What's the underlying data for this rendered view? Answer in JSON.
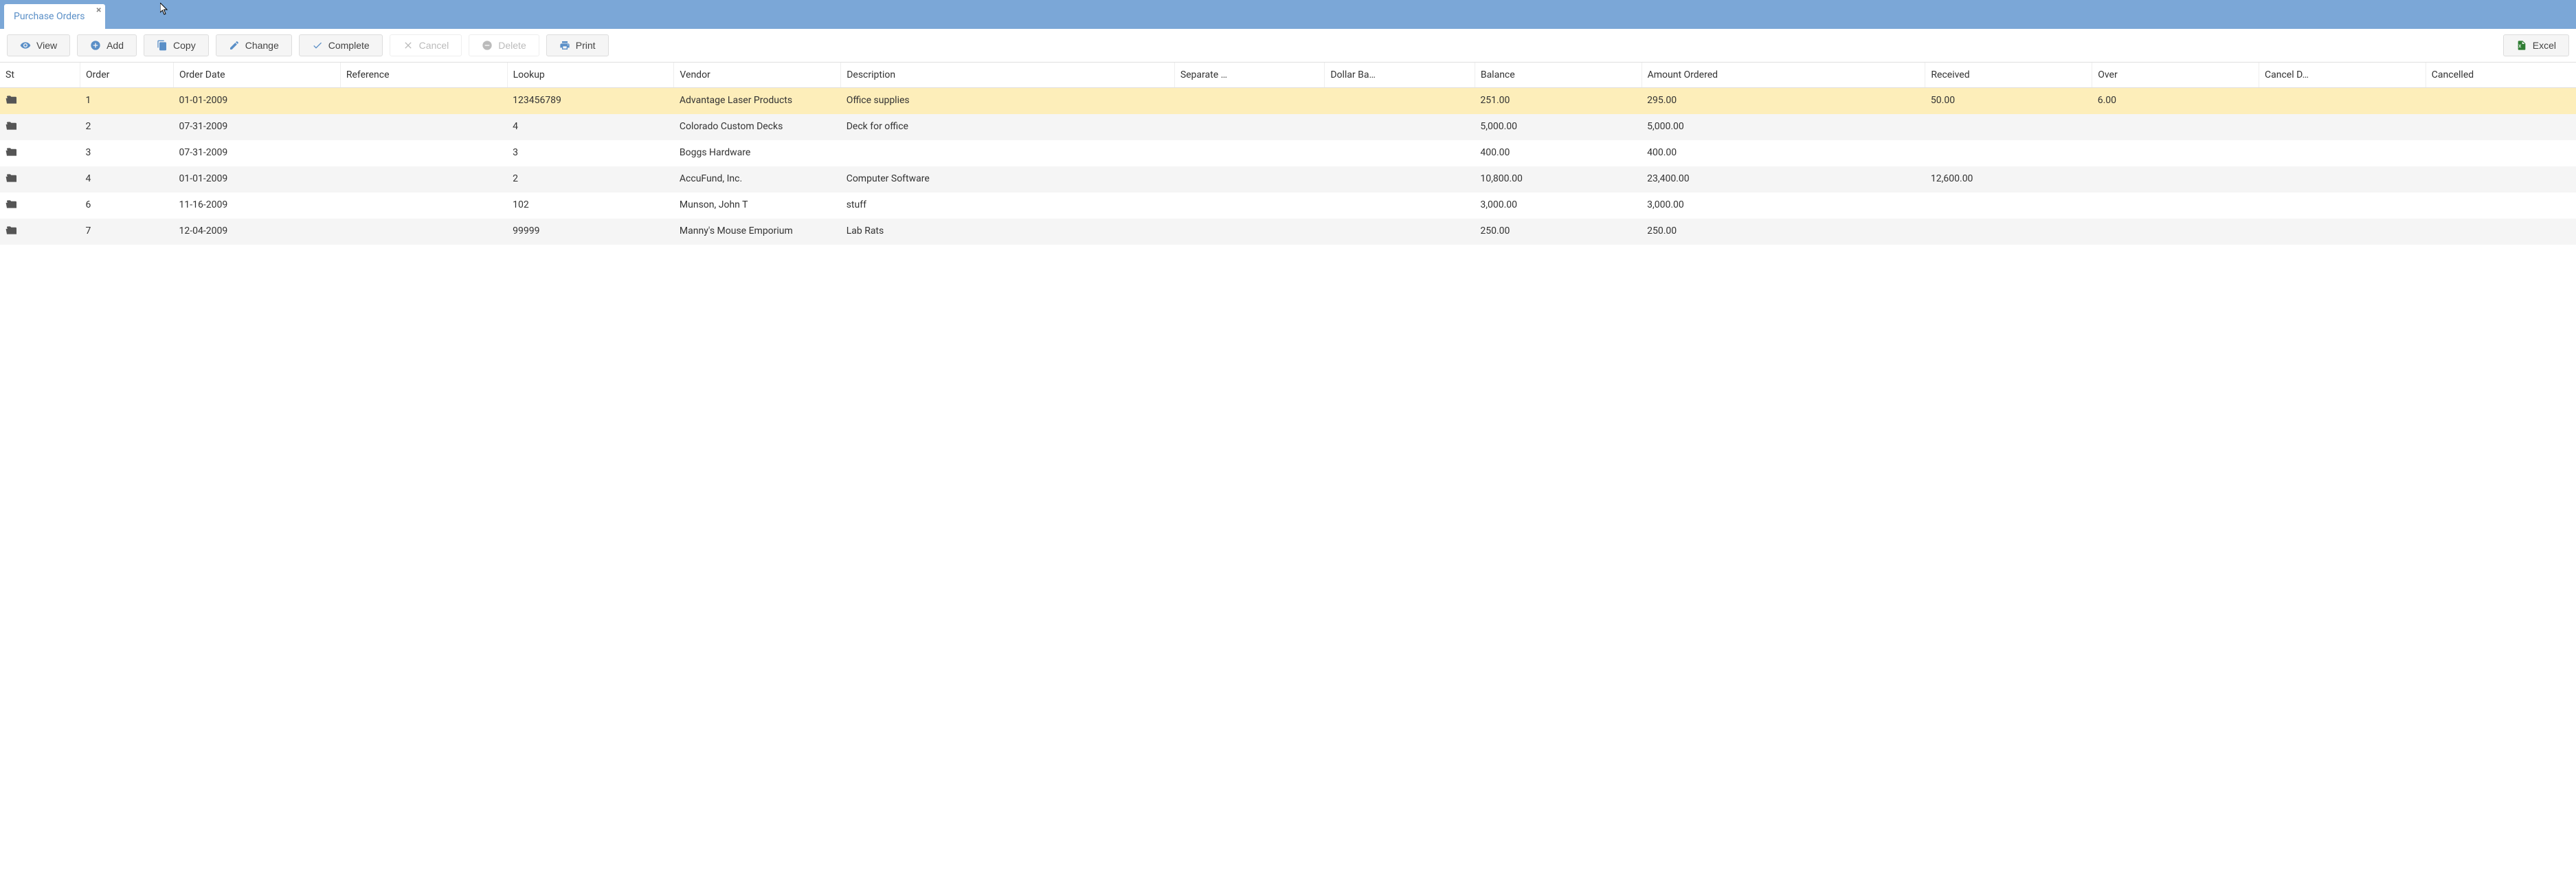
{
  "tab": {
    "title": "Purchase Orders"
  },
  "toolbar": {
    "view": "View",
    "add": "Add",
    "copy": "Copy",
    "change": "Change",
    "complete": "Complete",
    "cancel": "Cancel",
    "delete": "Delete",
    "print": "Print",
    "excel": "Excel"
  },
  "columns": {
    "st": "St",
    "order": "Order",
    "order_date": "Order Date",
    "reference": "Reference",
    "lookup": "Lookup",
    "vendor": "Vendor",
    "description": "Description",
    "separate": "Separate …",
    "dollar_ba": "Dollar Ba…",
    "balance": "Balance",
    "amount_ordered": "Amount Ordered",
    "received": "Received",
    "over": "Over",
    "cancel_d": "Cancel D…",
    "cancelled": "Cancelled"
  },
  "col_widths": {
    "st": "48px",
    "order": "56px",
    "order_date": "100px",
    "reference": "100px",
    "lookup": "100px",
    "vendor": "100px",
    "description": "200px",
    "separate": "90px",
    "dollar_ba": "90px",
    "balance": "100px",
    "amount_ordered": "170px",
    "received": "100px",
    "over": "100px",
    "cancel_d": "100px",
    "cancelled": "90px"
  },
  "rows": [
    {
      "selected": true,
      "order": "1",
      "order_date": "01-01-2009",
      "reference": "",
      "lookup": "123456789",
      "vendor": "Advantage Laser Products",
      "description": "Office supplies",
      "separate": "",
      "dollar_ba": "",
      "balance": "251.00",
      "amount_ordered": "295.00",
      "received": "50.00",
      "over": "6.00",
      "cancel_d": "",
      "cancelled": ""
    },
    {
      "selected": false,
      "order": "2",
      "order_date": "07-31-2009",
      "reference": "",
      "lookup": "4",
      "vendor": "Colorado Custom Decks",
      "description": "Deck for office",
      "separate": "",
      "dollar_ba": "",
      "balance": "5,000.00",
      "amount_ordered": "5,000.00",
      "received": "",
      "over": "",
      "cancel_d": "",
      "cancelled": ""
    },
    {
      "selected": false,
      "order": "3",
      "order_date": "07-31-2009",
      "reference": "",
      "lookup": "3",
      "vendor": "Boggs Hardware",
      "description": "",
      "separate": "",
      "dollar_ba": "",
      "balance": "400.00",
      "amount_ordered": "400.00",
      "received": "",
      "over": "",
      "cancel_d": "",
      "cancelled": ""
    },
    {
      "selected": false,
      "order": "4",
      "order_date": "01-01-2009",
      "reference": "",
      "lookup": "2",
      "vendor": "AccuFund, Inc.",
      "description": "Computer Software",
      "separate": "",
      "dollar_ba": "",
      "balance": "10,800.00",
      "amount_ordered": "23,400.00",
      "received": "12,600.00",
      "over": "",
      "cancel_d": "",
      "cancelled": ""
    },
    {
      "selected": false,
      "order": "6",
      "order_date": "11-16-2009",
      "reference": "",
      "lookup": "102",
      "vendor": "Munson, John T",
      "description": "stuff",
      "separate": "",
      "dollar_ba": "",
      "balance": "3,000.00",
      "amount_ordered": "3,000.00",
      "received": "",
      "over": "",
      "cancel_d": "",
      "cancelled": ""
    },
    {
      "selected": false,
      "order": "7",
      "order_date": "12-04-2009",
      "reference": "",
      "lookup": "99999",
      "vendor": "Manny's Mouse Emporium",
      "description": "Lab Rats",
      "separate": "",
      "dollar_ba": "",
      "balance": "250.00",
      "amount_ordered": "250.00",
      "received": "",
      "over": "",
      "cancel_d": "",
      "cancelled": ""
    }
  ],
  "colors": {
    "titlebar_bg": "#7ba7d7",
    "tab_text": "#5a8fc7",
    "selected_row_bg": "#fdeeba",
    "alt_row_bg": "#f5f5f5",
    "numeric_text": "#2e7d32",
    "border": "#e0e0e0"
  }
}
